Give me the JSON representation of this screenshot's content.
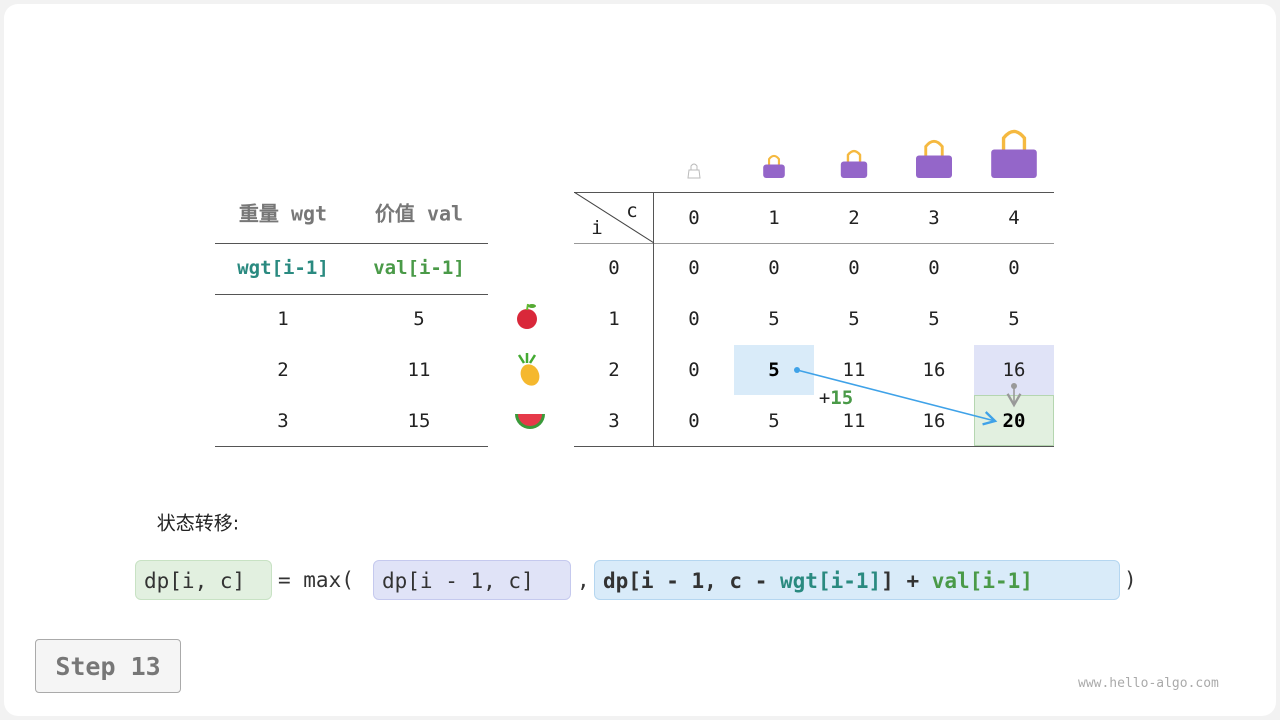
{
  "left_table": {
    "headers": [
      "重量 wgt",
      "价值 val"
    ],
    "subheaders": [
      "wgt[i-1]",
      "val[i-1]"
    ],
    "rows": [
      [
        "1",
        "5"
      ],
      [
        "2",
        "11"
      ],
      [
        "3",
        "15"
      ]
    ],
    "items": [
      "apple-icon",
      "pineapple-icon",
      "watermelon-icon"
    ]
  },
  "dp_table": {
    "corner_i": "i",
    "corner_c": "c",
    "col_headers": [
      "0",
      "1",
      "2",
      "3",
      "4"
    ],
    "row_headers": [
      "0",
      "1",
      "2",
      "3"
    ],
    "cells": [
      [
        "0",
        "0",
        "0",
        "0",
        "0"
      ],
      [
        "0",
        "5",
        "5",
        "5",
        "5"
      ],
      [
        "0",
        "5",
        "11",
        "16",
        "16"
      ],
      [
        "0",
        "5",
        "11",
        "16",
        "20"
      ]
    ],
    "bag_icons": [
      "empty-bag-icon",
      "bag-icon",
      "bag-icon",
      "bag-icon",
      "bag-icon"
    ],
    "annotation": {
      "plus": "+",
      "value": "15"
    },
    "colors": {
      "blue_cell": "#d9ebf9",
      "purple_cell": "#e0e3f7",
      "green_cell": "#e2f0e0",
      "arrow": "#3fa2e8",
      "bag": "#9466c9",
      "handle": "#f5b940"
    }
  },
  "formula": {
    "label": "状态转移:",
    "lhs": "dp[i, c]",
    "eq": "= max(",
    "opt1": "dp[i - 1, c]",
    "comma": ",",
    "opt2_a": "dp[i - 1, c - ",
    "opt2_wgt": "wgt[i-1]",
    "opt2_b": "] + ",
    "opt2_val": "val[i-1]",
    "close": ")"
  },
  "step_label": "Step 13",
  "watermark": "www.hello-algo.com"
}
